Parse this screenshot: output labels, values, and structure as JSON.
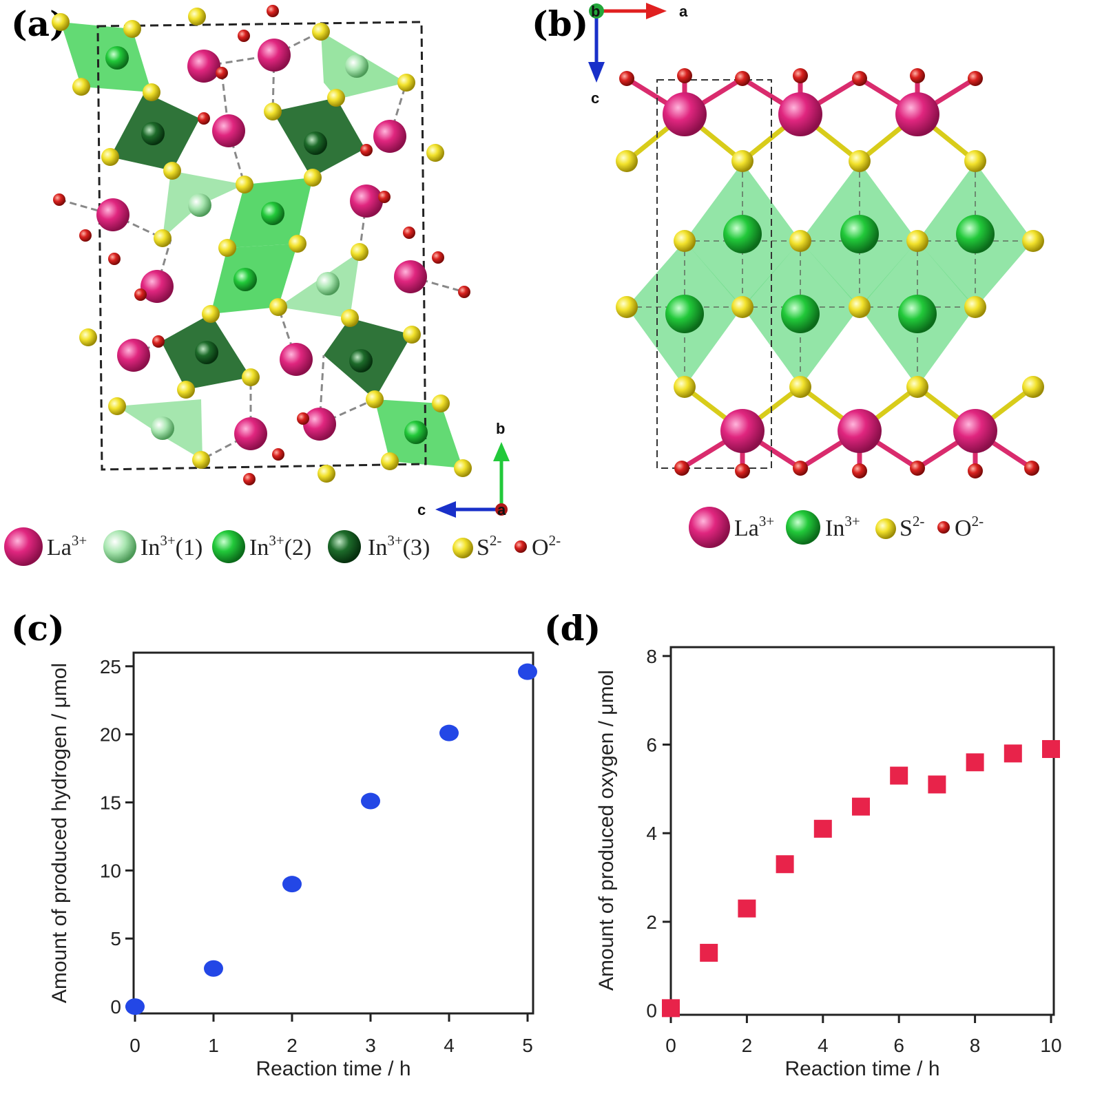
{
  "figure": {
    "panels": {
      "a": {
        "label": "(a)",
        "axes": {
          "b": "b",
          "c": "c",
          "a": "a"
        },
        "legend": [
          {
            "base": "La",
            "sup": "3+",
            "suffix": "",
            "color": "#e0267f"
          },
          {
            "base": "In",
            "sup": "3+",
            "suffix": "(1)",
            "color": "#9ee2a6"
          },
          {
            "base": "In",
            "sup": "3+",
            "suffix": "(2)",
            "color": "#22c93a"
          },
          {
            "base": "In",
            "sup": "3+",
            "suffix": "(3)",
            "color": "#1d6b2a"
          },
          {
            "base": "S",
            "sup": "2-",
            "suffix": "",
            "color": "#f2e22c"
          },
          {
            "base": "O",
            "sup": "2-",
            "suffix": "",
            "color": "#d9221f"
          }
        ]
      },
      "b": {
        "label": "(b)",
        "axes": {
          "b": "b",
          "a": "a",
          "c": "c"
        },
        "legend": [
          {
            "base": "La",
            "sup": "3+",
            "color": "#e0267f"
          },
          {
            "base": "In",
            "sup": "3+",
            "color": "#22c93a"
          },
          {
            "base": "S",
            "sup": "2-",
            "color": "#f2e22c"
          },
          {
            "base": "O",
            "sup": "2-",
            "color": "#d9221f"
          }
        ]
      },
      "c": {
        "label": "(c)"
      },
      "d": {
        "label": "(d)"
      }
    }
  },
  "chart_data": [
    {
      "type": "scatter",
      "panel": "c",
      "xlabel": "Reaction time / h",
      "ylabel": "Amount of produced hydrogen / μmol",
      "xlim": [
        0,
        5
      ],
      "ylim": [
        -0.5,
        26
      ],
      "xticks": [
        0,
        1,
        2,
        3,
        4,
        5
      ],
      "yticks": [
        0,
        5,
        10,
        15,
        20,
        25
      ],
      "marker": "circle",
      "color": "#2347e6",
      "x": [
        0,
        1,
        2,
        3,
        4,
        5
      ],
      "y": [
        0,
        2.8,
        9.0,
        15.1,
        20.1,
        24.6
      ]
    },
    {
      "type": "scatter",
      "panel": "d",
      "xlabel": "Reaction time / h",
      "ylabel": "Amount of produced oxygen / μmol",
      "xlim": [
        0,
        10
      ],
      "ylim": [
        -0.1,
        8.2
      ],
      "xticks": [
        0,
        2,
        4,
        6,
        8,
        10
      ],
      "yticks": [
        0,
        2,
        4,
        6,
        8
      ],
      "marker": "square",
      "color": "#e8234a",
      "x": [
        0,
        1,
        2,
        3,
        4,
        5,
        6,
        7,
        8,
        9,
        10
      ],
      "y": [
        0.05,
        1.3,
        2.3,
        3.3,
        4.1,
        4.6,
        5.3,
        5.1,
        5.6,
        5.8,
        5.9
      ]
    }
  ]
}
